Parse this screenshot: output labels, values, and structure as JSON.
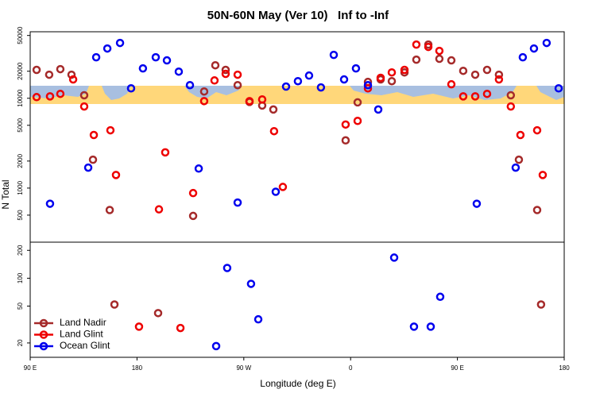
{
  "chart_data": [
    {
      "type": "scatter",
      "title": "50N-60N May (Ver 10)   Inf to -Inf",
      "y_label": "N Total",
      "log_y": true,
      "xlim": [
        90,
        540
      ],
      "ylim": [
        250,
        55000
      ],
      "yticks": [
        500,
        1000,
        2000,
        5000,
        10000,
        20000,
        50000
      ],
      "series": [
        {
          "color": "#a52a2a",
          "x": [
            95.4,
            106,
            115.4,
            124.8,
            135.5,
            142.9,
            157,
            227.3,
            236.6,
            246,
            254.7,
            264.8,
            274.8,
            285.5,
            294.9,
            355.8,
            365.9,
            374.6,
            385.3,
            394.7,
            405.4,
            415.4,
            425.5,
            434.8,
            444.9,
            454.9,
            465,
            475,
            485,
            495,
            501.8,
            517.2
          ],
          "values": [
            20700,
            18300,
            21100,
            18300,
            10800,
            2070,
            570,
            490,
            11900,
            23300,
            20700,
            14000,
            9100,
            8300,
            7500,
            3400,
            9000,
            15200,
            16200,
            15500,
            19400,
            26900,
            39600,
            27500,
            26400,
            20200,
            18300,
            20700,
            18300,
            10800,
            2070,
            570
          ]
        },
        {
          "color": "#ee0000",
          "x": [
            95.4,
            106.7,
            115.4,
            126.2,
            135.5,
            143.6,
            157.6,
            162.3,
            198.5,
            203.8,
            227.3,
            236.6,
            245.3,
            254.7,
            264.8,
            274.8,
            285.5,
            295.5,
            302.9,
            355.8,
            365.9,
            374.6,
            385.3,
            394.7,
            405.4,
            415.4,
            425.5,
            434.8,
            444.9,
            454.9,
            465,
            475,
            485,
            495,
            503.1,
            517.2,
            521.9
          ],
          "values": [
            10300,
            10500,
            11200,
            16200,
            8100,
            3900,
            4400,
            1400,
            580,
            2500,
            880,
            9300,
            15800,
            18700,
            18300,
            9300,
            9700,
            4300,
            1030,
            5100,
            5600,
            12900,
            16900,
            19400,
            20700,
            39600,
            37300,
            33700,
            14300,
            10500,
            10500,
            11200,
            16200,
            8100,
            3900,
            4400,
            1400
          ]
        },
        {
          "color": "#0000ee",
          "x": [
            106.7,
            138.9,
            145.6,
            155,
            165.7,
            175,
            185,
            195.8,
            205.2,
            215.2,
            224.6,
            232,
            264.8,
            296.9,
            305.6,
            315.6,
            325,
            335,
            345.8,
            354.5,
            364.5,
            374.6,
            383.3,
            466.3,
            499.1,
            505.1,
            514.5,
            525.2,
            535.3
          ],
          "values": [
            670,
            1690,
            28600,
            35800,
            41300,
            12900,
            21500,
            28600,
            26400,
            19800,
            14000,
            1650,
            690,
            910,
            13500,
            15500,
            17900,
            13200,
            30400,
            16200,
            21500,
            14000,
            7500,
            670,
            1690,
            28600,
            35800,
            41300,
            12900
          ]
        }
      ]
    },
    {
      "type": "scatter",
      "x_label": "Longitude (deg E)",
      "log_y": true,
      "legend": "bottom-left",
      "xlim": [
        90,
        540
      ],
      "ylim": [
        14,
        245
      ],
      "xticks": [
        {
          "value": 90,
          "label": "90 E"
        },
        180,
        {
          "value": 270,
          "label": "90 W"
        },
        {
          "value": 360,
          "label": "0"
        },
        {
          "value": 450,
          "label": "90 E"
        },
        {
          "value": 540,
          "label": "180"
        }
      ],
      "yticks": [
        20,
        50,
        100,
        200
      ],
      "series": [
        {
          "name": "Land Nadir",
          "color": "#a52a2a",
          "x": [
            161,
            197.8,
            520.5
          ],
          "values": [
            52,
            42,
            52
          ]
        },
        {
          "name": "Land Glint",
          "color": "#ee0000",
          "x": [
            181.7,
            216.6
          ],
          "values": [
            30,
            29
          ]
        },
        {
          "name": "Ocean Glint",
          "color": "#0000ee",
          "x": [
            246.7,
            256,
            276.1,
            282.2,
            396.7,
            413.4,
            427.5,
            435.5
          ],
          "values": [
            18.5,
            129,
            87,
            36,
            167,
            30,
            30,
            63
          ]
        }
      ]
    }
  ]
}
